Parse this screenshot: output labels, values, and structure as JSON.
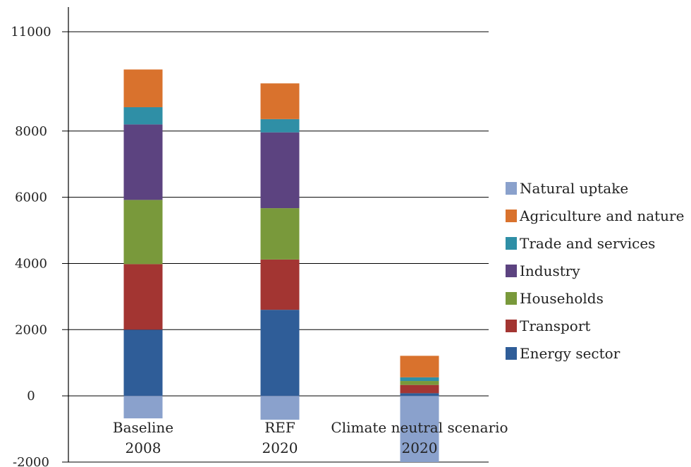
{
  "chart_data": {
    "type": "bar",
    "stacked": true,
    "categories": [
      [
        "Baseline",
        "2008"
      ],
      [
        "REF",
        "2020"
      ],
      [
        "Climate neutral scenario",
        "2020"
      ]
    ],
    "series": [
      {
        "name": "Energy sector",
        "color": "#2F5D98",
        "values": [
          2000,
          2600,
          80
        ]
      },
      {
        "name": "Transport",
        "color": "#A33532",
        "values": [
          1980,
          1520,
          250
        ]
      },
      {
        "name": "Households",
        "color": "#79993B",
        "values": [
          1940,
          1550,
          120
        ]
      },
      {
        "name": "Industry",
        "color": "#5C4380",
        "values": [
          2280,
          2290,
          0
        ]
      },
      {
        "name": "Trade and services",
        "color": "#2F8FA6",
        "values": [
          520,
          400,
          110
        ]
      },
      {
        "name": "Agriculture and nature",
        "color": "#D9722D",
        "values": [
          1140,
          1080,
          650
        ]
      },
      {
        "name": "Natural uptake",
        "color": "#8AA1CC",
        "values": [
          -680,
          -720,
          -2000
        ]
      }
    ],
    "yticks": [
      "11000",
      "8000",
      "6000",
      "4000",
      "2000",
      "0",
      "-2000"
    ],
    "ylim": [
      -2000,
      11000
    ],
    "grid": true,
    "legend_position": "right",
    "title": "",
    "xlabel": "",
    "ylabel": ""
  }
}
